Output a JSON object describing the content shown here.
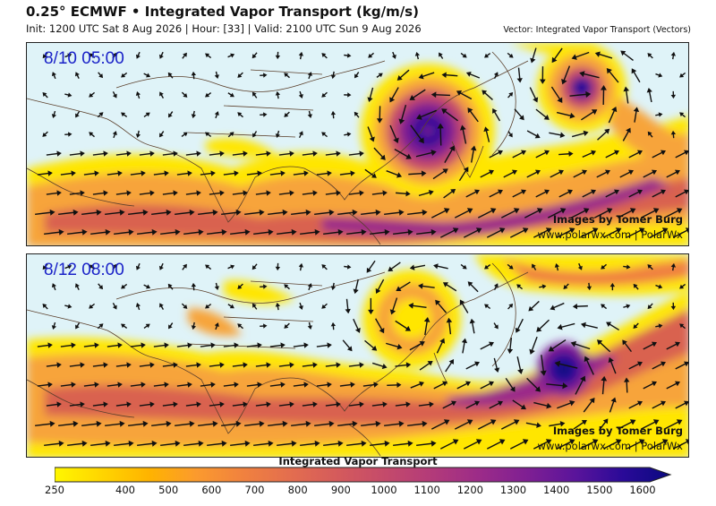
{
  "header": {
    "title": "0.25° ECMWF • Integrated Vapor Transport (kg/m/s)",
    "subtitle": "Init: 1200 UTC Sat 8 Aug 2026 | Hour: [33] | Valid: 2100 UTC Sun 9 Aug 2026",
    "vector_label": "Vector: Integrated Vapor Transport (Vectors)"
  },
  "panels": [
    {
      "stamp": "8/10 05:00",
      "credit_line1": "Images by Tomer Burg",
      "credit_line2": "www.polarwx.com | PolarWx"
    },
    {
      "stamp": "8/12 08:00",
      "credit_line1": "Images by Tomer Burg",
      "credit_line2": "www.polarwx.com | PolarWx"
    }
  ],
  "colorbar": {
    "title": "Integrated Vapor Transport",
    "ticks": [
      "250",
      "400",
      "500",
      "600",
      "700",
      "800",
      "900",
      "1000",
      "1100",
      "1200",
      "1300",
      "1400",
      "1500",
      "1600"
    ],
    "colors": [
      "#fff700",
      "#ffd500",
      "#ffb300",
      "#fb9a2e",
      "#f0813f",
      "#e36d4f",
      "#d45a5c",
      "#c44a6b",
      "#b23a7a",
      "#9b2b89",
      "#7e1f93",
      "#5a149b",
      "#2a0a98",
      "#0a0a80"
    ]
  }
}
